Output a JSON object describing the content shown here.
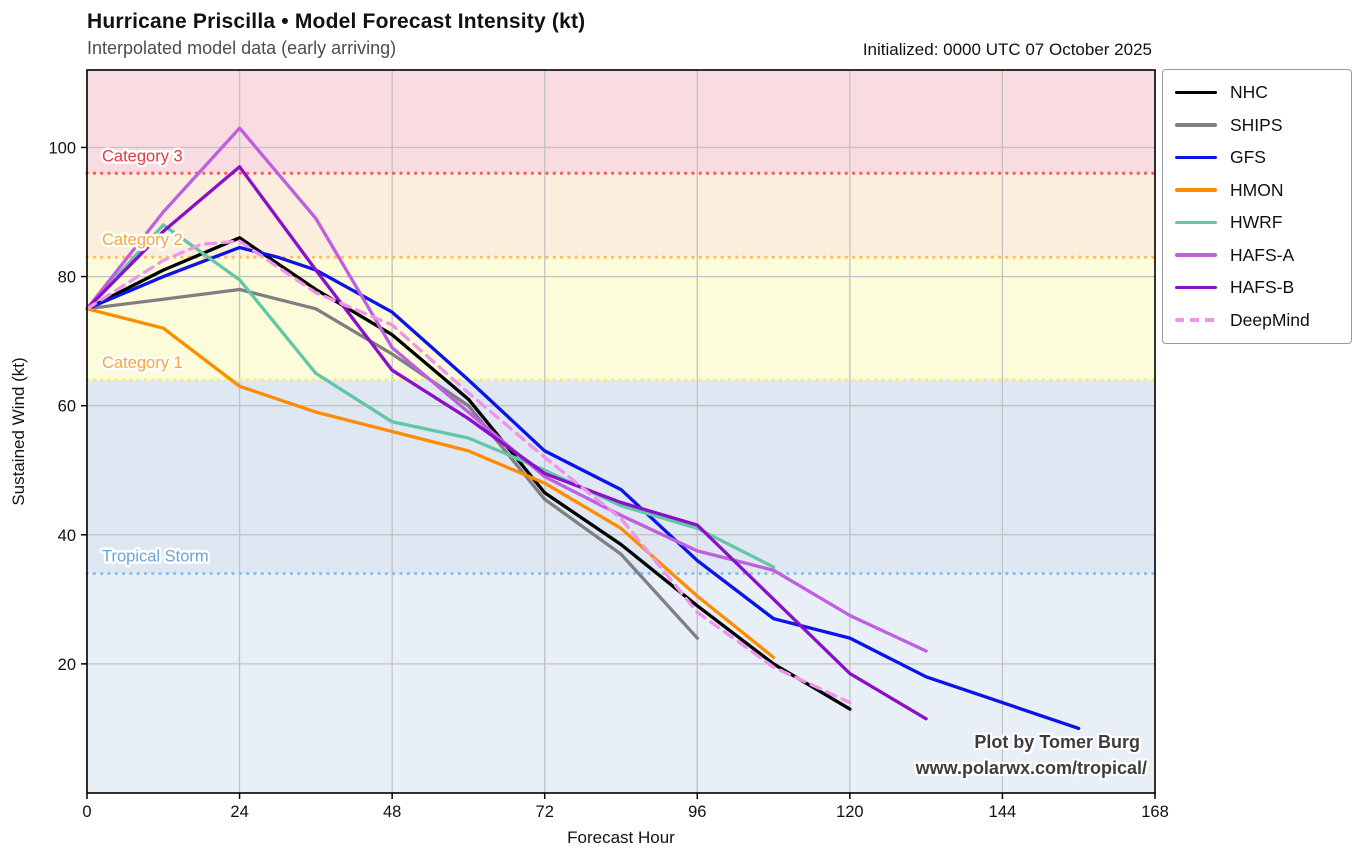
{
  "header": {
    "title": "Hurricane Priscilla • Model Forecast Intensity (kt)",
    "subtitle": "Interpolated model data (early arriving)",
    "initialized": "Initialized: 0000 UTC 07 October 2025"
  },
  "watermark": {
    "line1": "Plot by Tomer Burg",
    "line2": "www.polarwx.com/tropical/"
  },
  "chart_data": {
    "type": "line",
    "title": "Hurricane Priscilla • Model Forecast Intensity (kt)",
    "subtitle": "Interpolated model data (early arriving)",
    "xlabel": "Forecast Hour",
    "ylabel": "Sustained Wind (kt)",
    "xlim": [
      0,
      168
    ],
    "ylim": [
      0,
      112
    ],
    "xticks": [
      0,
      24,
      48,
      72,
      96,
      120,
      144,
      168
    ],
    "yticks": [
      20,
      40,
      60,
      80,
      100
    ],
    "grid": true,
    "legend_position": "outside-top-right",
    "bands": [
      {
        "name": "category-3-band",
        "from": 96,
        "to": 112,
        "color": "#f8dce2"
      },
      {
        "name": "category-2-band",
        "from": 83,
        "to": 96,
        "color": "#fbeedd"
      },
      {
        "name": "category-1-band",
        "from": 64,
        "to": 83,
        "color": "#fcfcda"
      },
      {
        "name": "tropical-storm-band",
        "from": 34,
        "to": 64,
        "color": "#dee7f2"
      },
      {
        "name": "below-ts-band",
        "from": 0,
        "to": 34,
        "color": "#e9eff7"
      }
    ],
    "thresholds": [
      {
        "label": "Category 3",
        "value": 96,
        "line_color": "#f1605a",
        "label_color": "#e53935"
      },
      {
        "label": "Category 2",
        "value": 83,
        "line_color": "#ffbe5c",
        "label_color": "#f7a63b"
      },
      {
        "label": "Category 1",
        "value": 64,
        "line_color": "#f2ee68",
        "label_color": "#f7a63b"
      },
      {
        "label": "Tropical Storm",
        "value": 34,
        "line_color": "#8cc0ea",
        "label_color": "#64a4dc"
      }
    ],
    "series": [
      {
        "name": "NHC",
        "color": "#000000",
        "dash": false,
        "points": [
          [
            0,
            75
          ],
          [
            12,
            81
          ],
          [
            24,
            86
          ],
          [
            36,
            78
          ],
          [
            48,
            71
          ],
          [
            60,
            61
          ],
          [
            72,
            46.5
          ],
          [
            84,
            38.5
          ],
          [
            96,
            29
          ],
          [
            108,
            20
          ],
          [
            120,
            13
          ]
        ]
      },
      {
        "name": "SHIPS",
        "color": "#7f7f7f",
        "dash": false,
        "points": [
          [
            0,
            75
          ],
          [
            12,
            76.5
          ],
          [
            24,
            78
          ],
          [
            36,
            75
          ],
          [
            48,
            68
          ],
          [
            60,
            60
          ],
          [
            72,
            45.5
          ],
          [
            84,
            37
          ],
          [
            96,
            24
          ]
        ]
      },
      {
        "name": "GFS",
        "color": "#0a14e6",
        "dash": false,
        "points": [
          [
            0,
            75
          ],
          [
            12,
            80
          ],
          [
            24,
            84.5
          ],
          [
            30,
            83
          ],
          [
            36,
            81
          ],
          [
            48,
            74.5
          ],
          [
            60,
            64
          ],
          [
            72,
            53
          ],
          [
            84,
            47
          ],
          [
            96,
            36
          ],
          [
            108,
            27
          ],
          [
            120,
            24
          ],
          [
            132,
            18
          ],
          [
            144,
            14
          ],
          [
            156,
            10
          ]
        ]
      },
      {
        "name": "HMON",
        "color": "#ff8c00",
        "dash": false,
        "points": [
          [
            0,
            75
          ],
          [
            12,
            72
          ],
          [
            24,
            63
          ],
          [
            36,
            59
          ],
          [
            48,
            56
          ],
          [
            60,
            53
          ],
          [
            72,
            48
          ],
          [
            84,
            41
          ],
          [
            96,
            30.5
          ],
          [
            108,
            21
          ]
        ]
      },
      {
        "name": "HWRF",
        "color": "#63c6a4",
        "dash": false,
        "points": [
          [
            0,
            75
          ],
          [
            12,
            88
          ],
          [
            24,
            79.5
          ],
          [
            36,
            65
          ],
          [
            48,
            57.5
          ],
          [
            60,
            55
          ],
          [
            72,
            50
          ],
          [
            84,
            44.5
          ],
          [
            96,
            41
          ],
          [
            108,
            35
          ]
        ]
      },
      {
        "name": "HAFS-A",
        "color": "#bf5fe0",
        "dash": false,
        "points": [
          [
            0,
            75
          ],
          [
            12,
            90
          ],
          [
            24,
            103
          ],
          [
            36,
            89
          ],
          [
            48,
            69
          ],
          [
            60,
            59
          ],
          [
            72,
            49
          ],
          [
            84,
            43
          ],
          [
            96,
            37.5
          ],
          [
            108,
            34.5
          ],
          [
            120,
            27.5
          ],
          [
            132,
            22
          ]
        ]
      },
      {
        "name": "HAFS-B",
        "color": "#8a0fc8",
        "dash": false,
        "points": [
          [
            0,
            75
          ],
          [
            12,
            87
          ],
          [
            24,
            97
          ],
          [
            36,
            81
          ],
          [
            48,
            65.5
          ],
          [
            60,
            58
          ],
          [
            72,
            49.5
          ],
          [
            84,
            45
          ],
          [
            96,
            41.5
          ],
          [
            108,
            30
          ],
          [
            120,
            18.5
          ],
          [
            132,
            11.5
          ]
        ]
      },
      {
        "name": "DeepMind",
        "color": "#f093ea",
        "dash": true,
        "points": [
          [
            0,
            75
          ],
          [
            12,
            82.5
          ],
          [
            18,
            85
          ],
          [
            24,
            85.5
          ],
          [
            36,
            77.5
          ],
          [
            48,
            72.5
          ],
          [
            60,
            62
          ],
          [
            72,
            52
          ],
          [
            84,
            42.5
          ],
          [
            96,
            28
          ],
          [
            108,
            19.5
          ],
          [
            120,
            14
          ]
        ]
      }
    ],
    "annotations": [
      "Plot by Tomer Burg",
      "www.polarwx.com/tropical/"
    ]
  }
}
